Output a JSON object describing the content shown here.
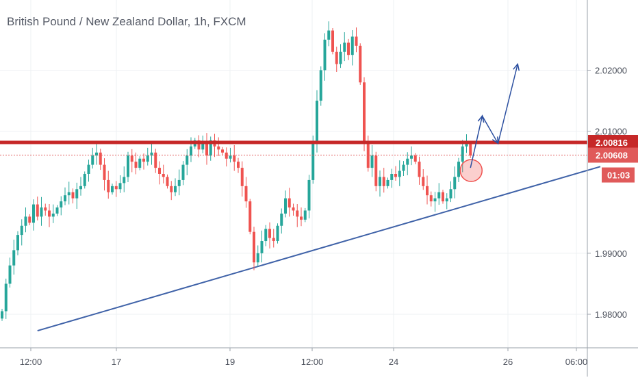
{
  "chart_data": {
    "type": "candlestick",
    "title": "British Pound / New Zealand Dollar, 1h, FXCM",
    "x_ticks": [
      "12:00",
      "17",
      "19",
      "12:00",
      "24",
      "26",
      "06:00"
    ],
    "y_ticks": [
      "2.02000",
      "2.01000",
      "1.99000",
      "1.98000"
    ],
    "y_tick_values": [
      2.02,
      2.01,
      1.99,
      1.98
    ],
    "ylim": [
      1.9745,
      2.0315
    ],
    "grid": true,
    "price_labels": [
      {
        "label": "2.00816",
        "value": 2.00816,
        "color": "#c62828"
      },
      {
        "label": "2.00608",
        "value": 2.00608,
        "color": "#e05a5a"
      }
    ],
    "countdown": {
      "label": "01:03",
      "color": "#e05a5a"
    },
    "resistance_level": 2.00816,
    "current_price": 2.00608,
    "colors": {
      "up": "#26a69a",
      "down": "#ef5350",
      "resistance": "#c62828",
      "trendline": "#3f62a8",
      "projection": "#2b4fa0"
    },
    "series": [
      {
        "name": "candles_close",
        "values": [
          1.9805,
          1.985,
          1.988,
          1.9905,
          1.993,
          1.9945,
          1.996,
          1.995,
          1.998,
          1.996,
          1.9975,
          1.997,
          1.996,
          1.9965,
          1.9975,
          1.9985,
          1.9995,
          2.0,
          1.999,
          2.0005,
          2.001,
          2.003,
          2.0045,
          2.006,
          2.0065,
          2.0045,
          2.002,
          2.0,
          2.001,
          2.0005,
          2.0015,
          2.0025,
          2.006,
          2.005,
          2.004,
          2.0055,
          2.005,
          2.006,
          2.0065,
          2.004,
          2.003,
          2.0025,
          2.001,
          2.0,
          2.001,
          2.002,
          2.0045,
          2.006,
          2.0075,
          2.0085,
          2.007,
          2.008,
          2.006,
          2.0085,
          2.0075,
          2.007,
          2.0065,
          2.0055,
          2.006,
          2.005,
          2.004,
          2.001,
          1.9985,
          1.9935,
          1.9885,
          1.99,
          1.992,
          1.994,
          1.9925,
          1.992,
          1.9945,
          1.9965,
          1.999,
          1.9975,
          1.997,
          1.996,
          1.9955,
          1.997,
          2.002,
          2.008,
          2.015,
          2.02,
          2.025,
          2.0265,
          2.023,
          2.021,
          2.023,
          2.0245,
          2.0225,
          2.0255,
          2.024,
          2.018,
          2.008,
          2.004,
          2.006,
          2.001,
          2.0025,
          2.001,
          2.002,
          2.003,
          2.0025,
          2.0035,
          2.0045,
          2.0055,
          2.006,
          2.005,
          2.0025,
          2.001,
          1.9995,
          1.9985,
          1.999,
          2.0,
          1.9985,
          1.999,
          2.0005,
          2.0025,
          2.005,
          2.0075,
          2.008,
          2.006
        ]
      }
    ],
    "trendline": {
      "from": {
        "index": 9,
        "value": 1.9773
      },
      "to": {
        "index": 152,
        "value": 2.0042
      }
    },
    "projection_path": [
      {
        "index": 119,
        "value": 2.004
      },
      {
        "index": 122,
        "value": 2.0125
      },
      {
        "index": 126,
        "value": 2.008
      },
      {
        "index": 131,
        "value": 2.021
      }
    ],
    "marker_circle": {
      "index": 119,
      "value": 2.004
    }
  }
}
